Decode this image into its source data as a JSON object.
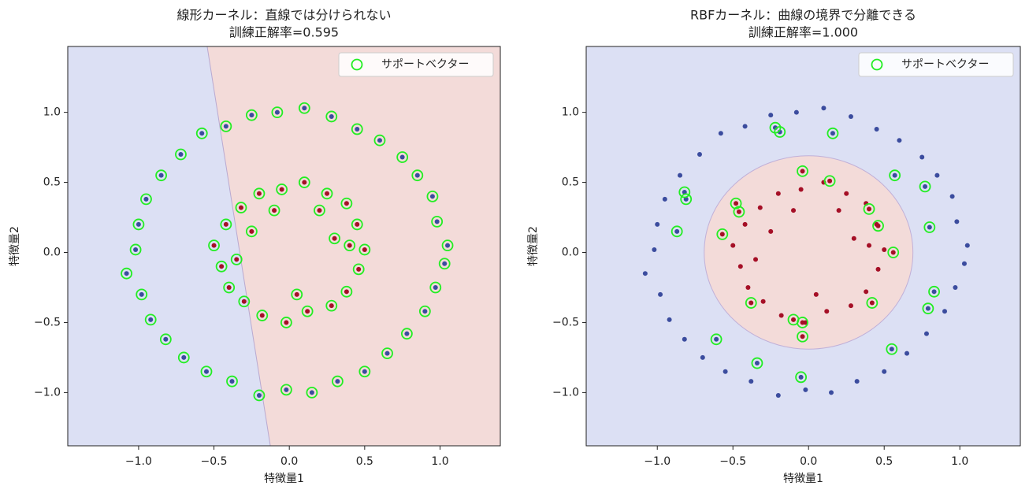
{
  "chart_data": [
    {
      "type": "scatter",
      "title": "線形カーネル：直線では分けられない",
      "subtitle": "訓練正解率=0.595",
      "x_label": "特徴量1",
      "y_label": "特徴量2",
      "xlim": [
        -1.47,
        1.4
      ],
      "ylim": [
        -1.38,
        1.47
      ],
      "xticks": [
        {
          "value": -1.0,
          "label": "−1.0"
        },
        {
          "value": -0.5,
          "label": "−0.5"
        },
        {
          "value": 0.0,
          "label": "0.0"
        },
        {
          "value": 0.5,
          "label": "0.5"
        },
        {
          "value": 1.0,
          "label": "1.0"
        }
      ],
      "yticks": [
        {
          "value": -1.0,
          "label": "−1.0"
        },
        {
          "value": -0.5,
          "label": "−0.5"
        },
        {
          "value": 0.0,
          "label": "0.0"
        },
        {
          "value": 0.5,
          "label": "0.5"
        },
        {
          "value": 1.0,
          "label": "1.0"
        }
      ],
      "decision_boundary": {
        "kind": "line",
        "x": [
          -0.545,
          -0.126
        ],
        "y": [
          1.47,
          -1.38
        ],
        "colors": [
          "#dce0f4",
          "#f3dbd9"
        ]
      },
      "legend": "upper right",
      "series": [
        {
          "color": "#3b4c9e",
          "marker": "dot",
          "x": [
            1.05,
            0.98,
            0.95,
            0.85,
            0.75,
            0.6,
            0.45,
            0.28,
            0.1,
            -0.08,
            -0.25,
            -0.42,
            -0.58,
            -0.72,
            -0.85,
            -0.95,
            -1.0,
            -1.02,
            -1.08,
            -0.98,
            -0.92,
            -0.82,
            -0.7,
            -0.55,
            -0.38,
            -0.2,
            -0.02,
            0.15,
            0.32,
            0.5,
            0.65,
            0.78,
            0.9,
            0.97,
            1.03
          ],
          "y": [
            0.05,
            0.22,
            0.4,
            0.55,
            0.68,
            0.8,
            0.88,
            0.97,
            1.03,
            1.0,
            0.98,
            0.9,
            0.85,
            0.7,
            0.55,
            0.38,
            0.2,
            0.02,
            -0.15,
            -0.3,
            -0.48,
            -0.62,
            -0.75,
            -0.85,
            -0.92,
            -1.02,
            -0.98,
            -1.0,
            -0.92,
            -0.85,
            -0.72,
            -0.58,
            -0.42,
            -0.25,
            -0.08
          ]
        },
        {
          "color": "#a50f26",
          "marker": "dot",
          "x": [
            0.5,
            0.45,
            0.38,
            0.25,
            0.1,
            -0.05,
            -0.2,
            -0.32,
            -0.42,
            -0.5,
            -0.45,
            -0.4,
            -0.3,
            -0.18,
            -0.02,
            0.12,
            0.28,
            0.38,
            0.46,
            0.3,
            -0.25,
            0.05,
            0.4,
            -0.35,
            0.2,
            -0.1
          ],
          "y": [
            0.02,
            0.2,
            0.35,
            0.42,
            0.5,
            0.45,
            0.42,
            0.32,
            0.2,
            0.05,
            -0.1,
            -0.25,
            -0.35,
            -0.45,
            -0.5,
            -0.42,
            -0.38,
            -0.28,
            -0.12,
            0.1,
            0.15,
            -0.3,
            0.05,
            -0.05,
            0.3,
            0.3
          ]
        },
        {
          "name": "サポートベクター",
          "color": "#22ee22",
          "marker": "ring",
          "x": [
            1.05,
            0.98,
            0.95,
            0.85,
            0.75,
            0.6,
            0.45,
            0.28,
            0.1,
            -0.08,
            -0.25,
            -0.42,
            -0.58,
            -0.72,
            -0.85,
            -0.95,
            -1.0,
            -1.02,
            -1.08,
            -0.98,
            -0.92,
            -0.82,
            -0.7,
            -0.55,
            -0.38,
            -0.2,
            -0.02,
            0.15,
            0.32,
            0.5,
            0.65,
            0.78,
            0.9,
            0.97,
            1.03,
            0.5,
            0.45,
            0.38,
            0.25,
            0.1,
            -0.05,
            -0.2,
            -0.32,
            -0.42,
            -0.5,
            -0.45,
            -0.4,
            -0.3,
            -0.18,
            -0.02,
            0.12,
            0.28,
            0.38,
            0.46,
            0.3,
            -0.25,
            0.05,
            0.4,
            -0.35,
            0.2,
            -0.1
          ],
          "y": [
            0.05,
            0.22,
            0.4,
            0.55,
            0.68,
            0.8,
            0.88,
            0.97,
            1.03,
            1.0,
            0.98,
            0.9,
            0.85,
            0.7,
            0.55,
            0.38,
            0.2,
            0.02,
            -0.15,
            -0.3,
            -0.48,
            -0.62,
            -0.75,
            -0.85,
            -0.92,
            -1.02,
            -0.98,
            -1.0,
            -0.92,
            -0.85,
            -0.72,
            -0.58,
            -0.42,
            -0.25,
            -0.08,
            0.02,
            0.2,
            0.35,
            0.42,
            0.5,
            0.45,
            0.42,
            0.32,
            0.2,
            0.05,
            -0.1,
            -0.25,
            -0.35,
            -0.45,
            -0.5,
            -0.42,
            -0.38,
            -0.28,
            -0.12,
            0.1,
            0.15,
            -0.3,
            0.05,
            -0.05,
            0.3,
            0.3
          ]
        }
      ]
    },
    {
      "type": "scatter",
      "title": "RBFカーネル：曲線の境界で分離できる",
      "subtitle": "訓練正解率=1.000",
      "x_label": "特徴量1",
      "y_label": "特徴量2",
      "xlim": [
        -1.47,
        1.4
      ],
      "ylim": [
        -1.38,
        1.47
      ],
      "xticks": [
        {
          "value": -1.0,
          "label": "−1.0"
        },
        {
          "value": -0.5,
          "label": "−0.5"
        },
        {
          "value": 0.0,
          "label": "0.0"
        },
        {
          "value": 0.5,
          "label": "0.5"
        },
        {
          "value": 1.0,
          "label": "1.0"
        }
      ],
      "yticks": [
        {
          "value": -1.0,
          "label": "−1.0"
        },
        {
          "value": -0.5,
          "label": "−0.5"
        },
        {
          "value": 0.0,
          "label": "0.0"
        },
        {
          "value": 0.5,
          "label": "0.5"
        },
        {
          "value": 1.0,
          "label": "1.0"
        }
      ],
      "decision_boundary": {
        "kind": "circle",
        "cx": 0.0,
        "cy": 0.0,
        "r": 0.69,
        "colors": [
          "#dce0f4",
          "#f3dbd9"
        ]
      },
      "legend": "upper right",
      "series": [
        {
          "color": "#3b4c9e",
          "marker": "dot",
          "x": [
            1.05,
            0.98,
            0.95,
            0.85,
            0.75,
            0.6,
            0.45,
            0.28,
            0.1,
            -0.08,
            -0.25,
            -0.42,
            -0.58,
            -0.72,
            -0.85,
            -0.95,
            -1.0,
            -1.02,
            -1.08,
            -0.98,
            -0.92,
            -0.82,
            -0.7,
            -0.55,
            -0.38,
            -0.2,
            -0.02,
            0.15,
            0.32,
            0.5,
            0.65,
            0.78,
            0.9,
            0.97,
            1.03,
            -0.22,
            -0.19,
            0.16,
            0.57,
            0.77,
            -0.82,
            -0.81,
            -0.87,
            0.8,
            0.83,
            0.79,
            0.55,
            -0.61,
            -0.34,
            -0.05
          ],
          "y": [
            0.05,
            0.22,
            0.4,
            0.55,
            0.68,
            0.8,
            0.88,
            0.97,
            1.03,
            1.0,
            0.98,
            0.9,
            0.85,
            0.7,
            0.55,
            0.38,
            0.2,
            0.02,
            -0.15,
            -0.3,
            -0.48,
            -0.62,
            -0.75,
            -0.85,
            -0.92,
            -1.02,
            -0.98,
            -1.0,
            -0.92,
            -0.85,
            -0.72,
            -0.58,
            -0.42,
            -0.25,
            -0.08,
            0.89,
            0.86,
            0.85,
            0.55,
            0.47,
            0.43,
            0.38,
            0.15,
            0.18,
            -0.28,
            -0.4,
            -0.69,
            -0.62,
            -0.79,
            -0.89
          ]
        },
        {
          "color": "#a50f26",
          "marker": "dot",
          "x": [
            0.5,
            0.45,
            0.38,
            0.25,
            0.1,
            -0.05,
            -0.2,
            -0.32,
            -0.42,
            -0.5,
            -0.45,
            -0.4,
            -0.3,
            -0.18,
            -0.02,
            0.12,
            0.28,
            0.38,
            0.46,
            0.3,
            -0.25,
            0.05,
            0.4,
            -0.35,
            0.2,
            -0.1,
            -0.57,
            -0.48,
            -0.46,
            -0.04,
            0.14,
            0.4,
            0.46,
            0.56,
            0.42,
            -0.38,
            -0.1,
            -0.04,
            -0.04
          ],
          "y": [
            0.02,
            0.2,
            0.35,
            0.42,
            0.5,
            0.45,
            0.42,
            0.32,
            0.2,
            0.05,
            -0.1,
            -0.25,
            -0.35,
            -0.45,
            -0.5,
            -0.42,
            -0.38,
            -0.28,
            -0.12,
            0.1,
            0.15,
            -0.3,
            0.05,
            -0.05,
            0.3,
            0.3,
            0.13,
            0.35,
            0.29,
            0.58,
            0.51,
            0.31,
            0.19,
            0.0,
            -0.36,
            -0.36,
            -0.48,
            -0.5,
            -0.6
          ]
        },
        {
          "name": "サポートベクター",
          "color": "#22ee22",
          "marker": "ring",
          "x": [
            -0.22,
            -0.19,
            0.16,
            0.57,
            0.77,
            -0.82,
            -0.81,
            -0.87,
            0.8,
            0.83,
            0.79,
            0.55,
            -0.61,
            -0.34,
            -0.05,
            -0.57,
            -0.48,
            -0.46,
            -0.04,
            0.14,
            0.4,
            0.46,
            0.56,
            0.42,
            -0.38,
            -0.1,
            -0.04,
            -0.04
          ],
          "y": [
            0.89,
            0.86,
            0.85,
            0.55,
            0.47,
            0.43,
            0.38,
            0.15,
            0.18,
            -0.28,
            -0.4,
            -0.69,
            -0.62,
            -0.79,
            -0.89,
            0.13,
            0.35,
            0.29,
            0.58,
            0.51,
            0.31,
            0.19,
            0.0,
            -0.36,
            -0.36,
            -0.48,
            -0.5,
            -0.6
          ]
        }
      ]
    }
  ]
}
